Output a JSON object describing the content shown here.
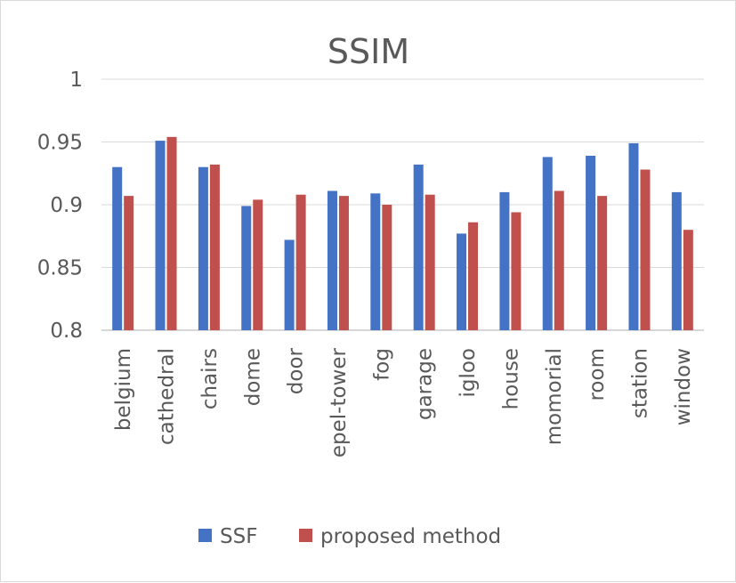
{
  "chart_data": {
    "type": "bar",
    "title": "SSIM",
    "categories": [
      "belgium",
      "cathedral",
      "chairs",
      "dome",
      "door",
      "epel-tower",
      "fog",
      "garage",
      "igloo",
      "house",
      "momorial",
      "room",
      "station",
      "window"
    ],
    "series": [
      {
        "name": "SSF",
        "color": "#4472c4",
        "values": [
          0.93,
          0.951,
          0.93,
          0.899,
          0.872,
          0.911,
          0.909,
          0.932,
          0.877,
          0.91,
          0.938,
          0.939,
          0.949,
          0.91
        ]
      },
      {
        "name": "proposed method",
        "color": "#c0504d",
        "values": [
          0.907,
          0.954,
          0.932,
          0.904,
          0.908,
          0.907,
          0.9,
          0.908,
          0.886,
          0.894,
          0.911,
          0.907,
          0.928,
          0.88
        ]
      }
    ],
    "ylim": [
      0.8,
      1.0
    ],
    "yticks": [
      "0.8",
      "0.85",
      "0.9",
      "0.95",
      "1"
    ],
    "grid": true,
    "legend_position": "bottom"
  }
}
